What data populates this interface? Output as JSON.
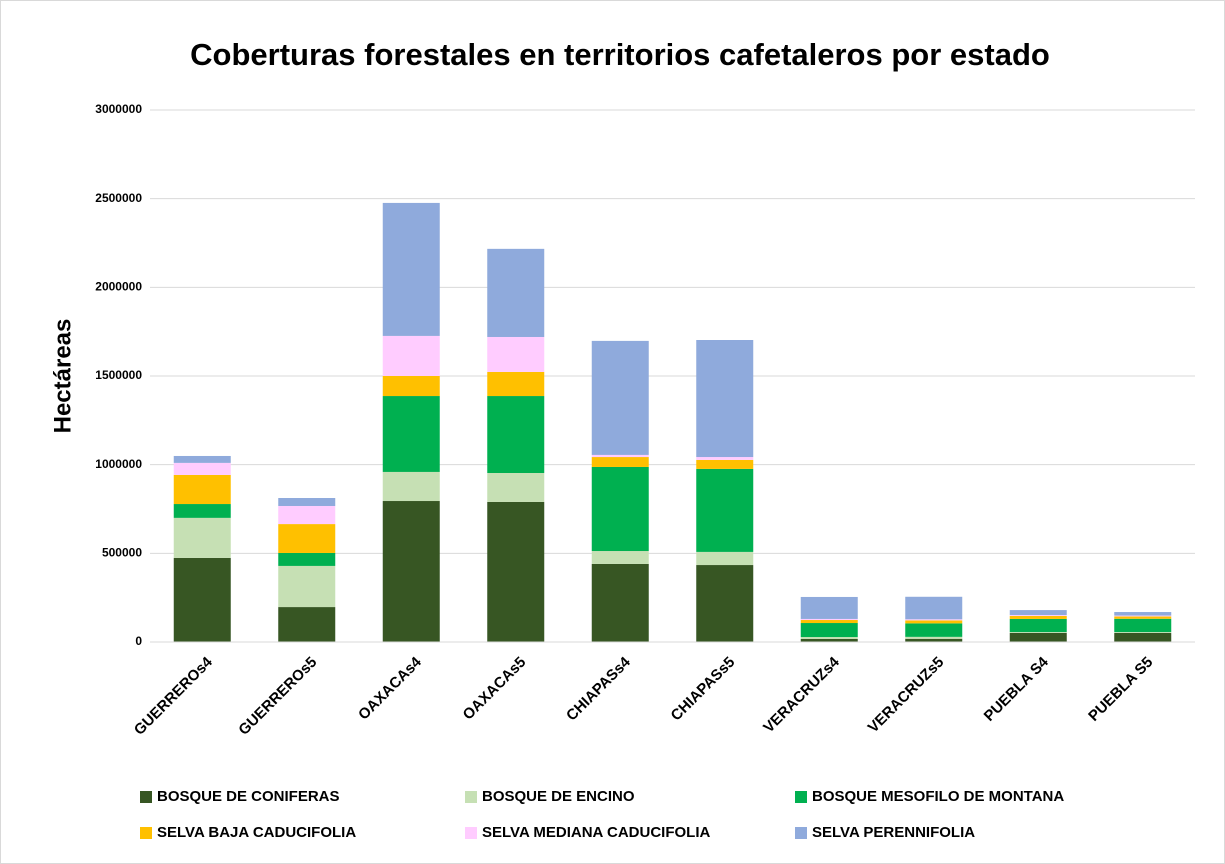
{
  "chart_data": {
    "type": "stacked_bar",
    "title": "Coberturas forestales en territorios cafetaleros por estado",
    "y_label": "Hectáreas",
    "categories": [
      "GUERREROs4",
      "GUERREROs5",
      "OAXACAs4",
      "OAXACAs5",
      "CHIAPASs4",
      "CHIAPASs5",
      "VERACRUZs4",
      "VERACRUZs5",
      "PUEBLA S4",
      "PUEBLA S5"
    ],
    "series": [
      {
        "name": "BOSQUE DE CONIFERAS",
        "color": "#375623",
        "values": [
          474000,
          197000,
          795000,
          790000,
          440000,
          434000,
          17000,
          18000,
          51000,
          51000
        ]
      },
      {
        "name": "BOSQUE DE ENCINO",
        "color": "#c6e0b4",
        "values": [
          226000,
          232000,
          164000,
          163000,
          73000,
          74000,
          11000,
          11000,
          5000,
          5000
        ]
      },
      {
        "name": "BOSQUE MESOFILO DE MONTANA",
        "color": "#00b050",
        "values": [
          78000,
          73000,
          428000,
          434000,
          474000,
          468000,
          79000,
          76000,
          74000,
          75000
        ]
      },
      {
        "name": "SELVA BAJA CADUCIFOLIA",
        "color": "#ffc000",
        "values": [
          164000,
          163000,
          113000,
          136000,
          56000,
          51000,
          17000,
          17000,
          17000,
          13000
        ]
      },
      {
        "name": "SELVA MEDIANA CADUCIFOLIA",
        "color": "#ffccff",
        "values": [
          68000,
          102000,
          226000,
          197000,
          12000,
          16000,
          6000,
          6000,
          5000,
          5000
        ]
      },
      {
        "name": "SELVA PERENNIFOLIA",
        "color": "#8faadc",
        "values": [
          39000,
          45000,
          750000,
          497000,
          643000,
          660000,
          124000,
          127000,
          28000,
          20000
        ]
      }
    ],
    "ylim": [
      0,
      3000000
    ],
    "yticks": [
      0,
      500000,
      1000000,
      1500000,
      2000000,
      2500000,
      3000000
    ],
    "grid": true,
    "legend": "bottom"
  }
}
